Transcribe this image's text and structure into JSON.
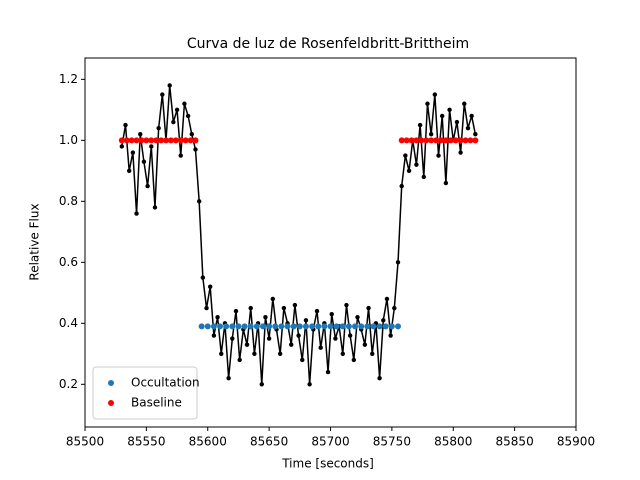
{
  "chart_data": {
    "type": "line",
    "title": "Curva de luz de Rosenfeldbritt-Brittheim",
    "x_label": "Time [seconds]",
    "y_label": "Relative Flux",
    "xlim": [
      85500,
      85900
    ],
    "ylim": [
      0.06,
      1.27
    ],
    "xticks": [
      85500,
      85550,
      85600,
      85650,
      85700,
      85750,
      85800,
      85850,
      85900
    ],
    "yticks": [
      0.2,
      0.4,
      0.6,
      0.8,
      {
        "value": 1,
        "label": "1.0"
      },
      1.2
    ],
    "legend": "lower left",
    "series": [
      {
        "color": "#000000",
        "linestyle": "solid",
        "x": [
          85530,
          85533,
          85536,
          85539,
          85542,
          85545,
          85548,
          85551,
          85554,
          85557,
          85560,
          85563,
          85566,
          85569,
          85572,
          85575,
          85578,
          85581,
          85584,
          85587,
          85590,
          85593,
          85596,
          85599,
          85602,
          85605,
          85608,
          85611,
          85614,
          85617,
          85620,
          85623,
          85626,
          85629,
          85632,
          85635,
          85638,
          85641,
          85644,
          85647,
          85650,
          85653,
          85656,
          85659,
          85662,
          85665,
          85668,
          85671,
          85674,
          85677,
          85680,
          85683,
          85686,
          85689,
          85692,
          85695,
          85698,
          85701,
          85704,
          85707,
          85710,
          85713,
          85716,
          85719,
          85722,
          85725,
          85728,
          85731,
          85734,
          85737,
          85740,
          85743,
          85746,
          85749,
          85752,
          85755,
          85758,
          85761,
          85764,
          85767,
          85770,
          85773,
          85776,
          85779,
          85782,
          85785,
          85788,
          85791,
          85794,
          85797,
          85800,
          85803,
          85806,
          85809,
          85812,
          85815,
          85818
        ],
        "values": [
          0.98,
          1.05,
          0.9,
          0.96,
          0.76,
          1.02,
          0.93,
          0.85,
          0.98,
          0.78,
          1.04,
          1.15,
          1.0,
          1.18,
          1.06,
          1.1,
          0.95,
          1.12,
          1.08,
          1.02,
          0.97,
          0.8,
          0.55,
          0.45,
          0.52,
          0.36,
          0.42,
          0.3,
          0.4,
          0.22,
          0.35,
          0.44,
          0.28,
          0.38,
          0.33,
          0.45,
          0.3,
          0.4,
          0.2,
          0.42,
          0.35,
          0.48,
          0.38,
          0.3,
          0.45,
          0.4,
          0.33,
          0.46,
          0.36,
          0.28,
          0.41,
          0.2,
          0.38,
          0.44,
          0.32,
          0.4,
          0.24,
          0.43,
          0.35,
          0.39,
          0.3,
          0.46,
          0.36,
          0.28,
          0.42,
          0.38,
          0.33,
          0.45,
          0.3,
          0.4,
          0.22,
          0.41,
          0.48,
          0.36,
          0.45,
          0.6,
          0.85,
          0.95,
          0.9,
          1.0,
          0.92,
          1.05,
          0.88,
          1.12,
          1.02,
          1.15,
          0.95,
          1.08,
          0.86,
          1.1,
          1.0,
          1.06,
          0.96,
          1.12,
          1.04,
          1.08,
          1.02
        ]
      },
      {
        "name": "Occultation",
        "color": "#1f77b4",
        "linestyle": "none",
        "x": [
          85595,
          85600,
          85605,
          85610,
          85615,
          85620,
          85625,
          85630,
          85635,
          85640,
          85645,
          85650,
          85655,
          85660,
          85665,
          85670,
          85675,
          85680,
          85685,
          85690,
          85695,
          85700,
          85705,
          85710,
          85715,
          85720,
          85725,
          85730,
          85735,
          85740,
          85745,
          85750,
          85755
        ],
        "values": [
          0.39,
          0.39,
          0.39,
          0.39,
          0.39,
          0.39,
          0.39,
          0.39,
          0.39,
          0.39,
          0.39,
          0.39,
          0.39,
          0.39,
          0.39,
          0.39,
          0.39,
          0.39,
          0.39,
          0.39,
          0.39,
          0.39,
          0.39,
          0.39,
          0.39,
          0.39,
          0.39,
          0.39,
          0.39,
          0.39,
          0.39,
          0.39,
          0.39
        ]
      },
      {
        "name": "Baseline",
        "color": "#ff0000",
        "linestyle": "none",
        "x": [
          85530,
          85534,
          85538,
          85542,
          85546,
          85550,
          85554,
          85558,
          85562,
          85566,
          85570,
          85574,
          85578,
          85582,
          85586,
          85590,
          85758,
          85762,
          85766,
          85770,
          85774,
          85778,
          85782,
          85786,
          85790,
          85794,
          85798,
          85802,
          85806,
          85810,
          85814,
          85818
        ],
        "values": [
          1.0,
          1.0,
          1.0,
          1.0,
          1.0,
          1.0,
          1.0,
          1.0,
          1.0,
          1.0,
          1.0,
          1.0,
          1.0,
          1.0,
          1.0,
          1.0,
          1.0,
          1.0,
          1.0,
          1.0,
          1.0,
          1.0,
          1.0,
          1.0,
          1.0,
          1.0,
          1.0,
          1.0,
          1.0,
          1.0,
          1.0,
          1.0
        ]
      }
    ]
  }
}
